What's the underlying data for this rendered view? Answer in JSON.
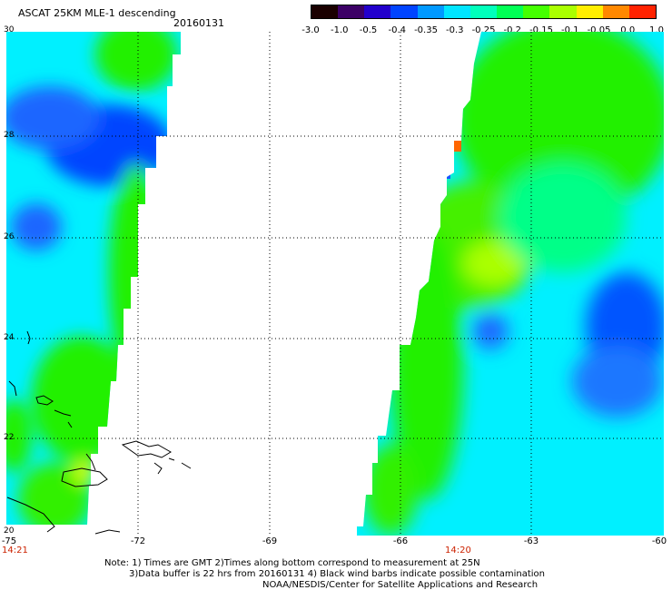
{
  "header": {
    "title": "ASCAT 25KM MLE-1 descending",
    "date": "20160131"
  },
  "colorbar": {
    "labels": [
      "-3.0",
      "-1.0",
      "-0.5",
      "-0.4",
      "-0.35",
      "-0.3",
      "-0.25",
      "-0.2",
      "-0.15",
      "-0.1",
      "-0.05",
      "0.0",
      "1.0"
    ],
    "colors": [
      "#1a0000",
      "#3c0066",
      "#2200cc",
      "#0044ff",
      "#0099ff",
      "#00e5ff",
      "#00ffbb",
      "#00ff55",
      "#44ff00",
      "#aaff00",
      "#ffee00",
      "#ff8800",
      "#ff2200"
    ]
  },
  "axes": {
    "lat_labels": [
      "30",
      "28",
      "26",
      "24",
      "22",
      "20"
    ],
    "lon_labels": [
      "-75",
      "-72",
      "-69",
      "-66",
      "-63",
      "-60"
    ]
  },
  "swath_times": {
    "left": "14:21",
    "right": "14:20"
  },
  "notes": {
    "line1": "Note: 1) Times are GMT 2)Times along bottom correspond to measurement at 25N",
    "line2": "3)Data buffer is 22 hrs from 20160131 4) Black wind barbs indicate possible contamination",
    "line3": "NOAA/NESDIS/Center for Satellite Applications and Research"
  },
  "palette": {
    "cyan": "#00f0ff",
    "green": "#22f000",
    "blue": "#0044ff",
    "yellow": "#ccff00"
  }
}
